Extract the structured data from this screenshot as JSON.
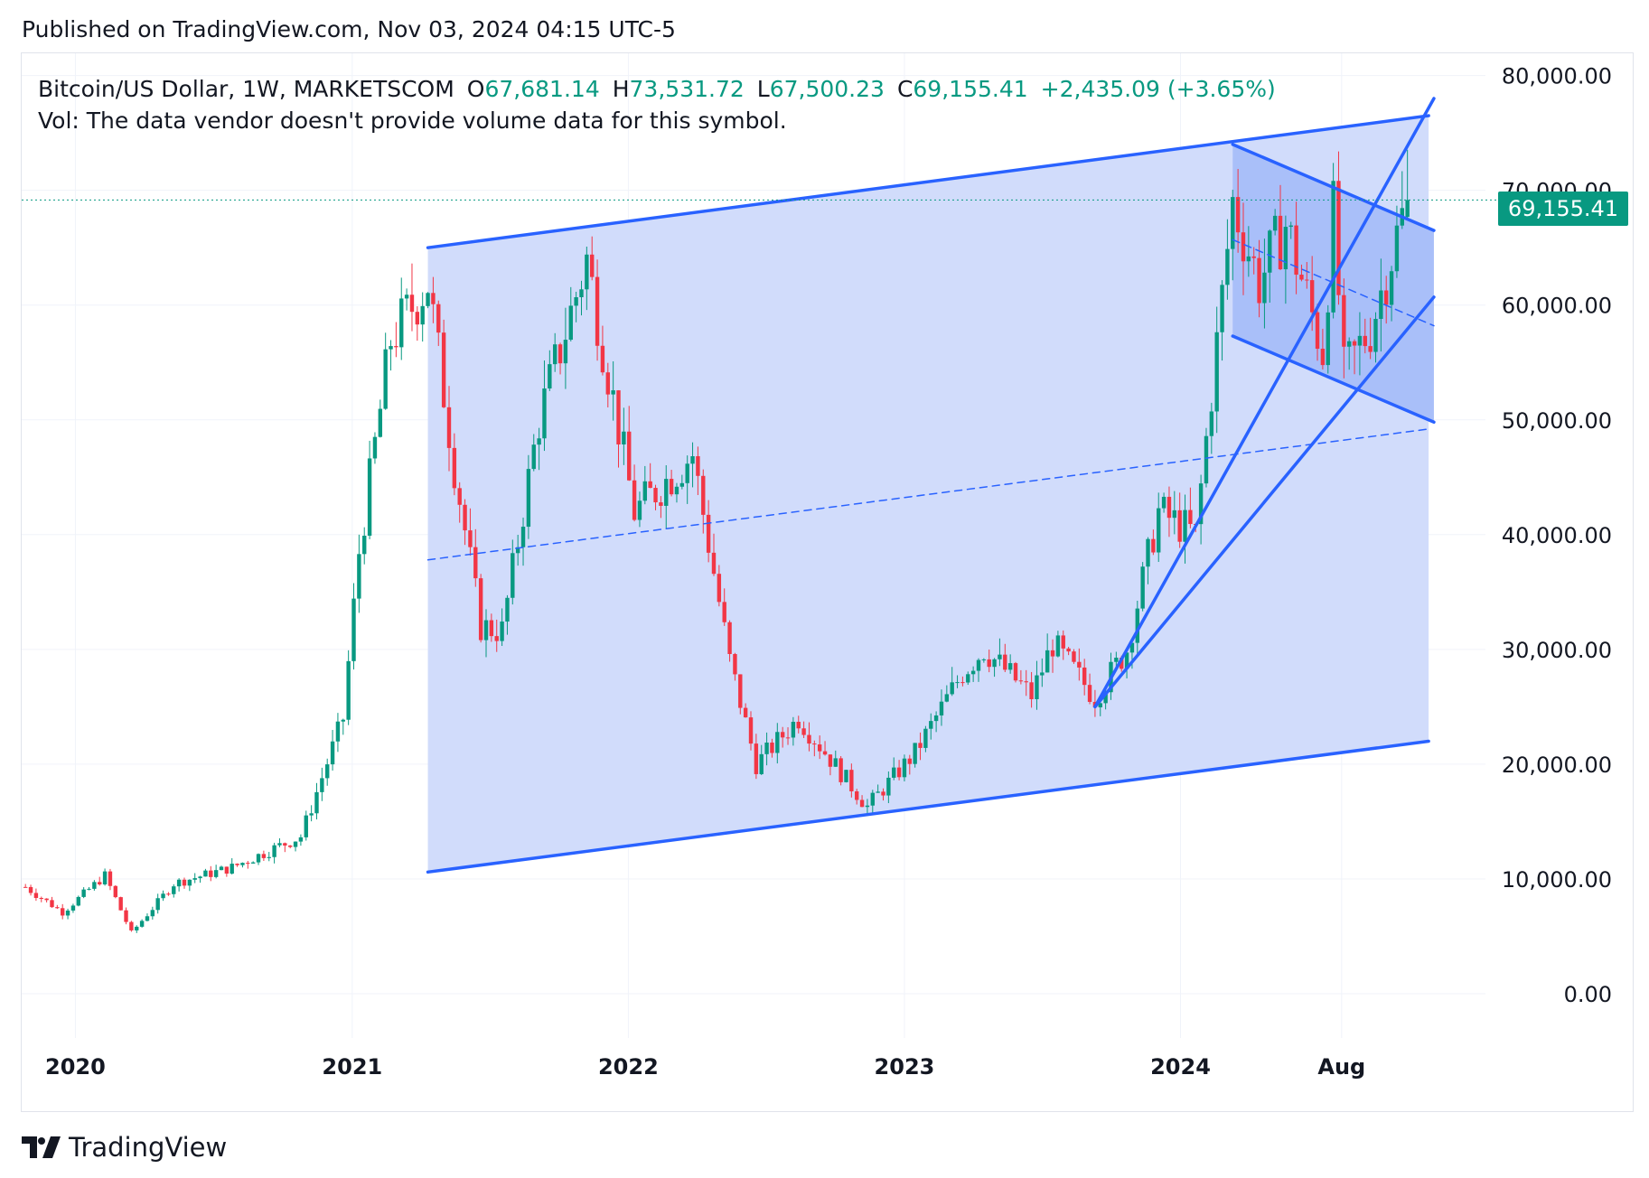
{
  "header": {
    "published": "Published on TradingView.com, Nov 03, 2024 04:15 UTC-5"
  },
  "legend": {
    "symbol": "Bitcoin/US Dollar, 1W, MARKETSCOM",
    "open_label": "O",
    "open": "67,681.14",
    "high_label": "H",
    "high": "73,531.72",
    "low_label": "L",
    "low": "67,500.23",
    "close_label": "C",
    "close": "69,155.41",
    "change": "+2,435.09 (+3.65%)",
    "volume_note": "Vol: The data vendor doesn't provide volume data for this symbol."
  },
  "price_badge": "69,155.41",
  "footer": {
    "brand": "TradingView"
  },
  "colors": {
    "up": "#089981",
    "down": "#f23645",
    "drawing": "#2962ff",
    "channel_fill": "#d1dcfb",
    "badge": "#089981"
  },
  "chart_data": {
    "type": "candlestick",
    "title": "Bitcoin/US Dollar, 1W, MARKETSCOM",
    "xlabel": "",
    "ylabel": "",
    "x_ticks": [
      "2020",
      "2021",
      "2022",
      "2023",
      "2024",
      "Aug"
    ],
    "y_ticks": [
      "0.00",
      "10,000.00",
      "20,000.00",
      "30,000.00",
      "40,000.00",
      "50,000.00",
      "60,000.00",
      "70,000.00",
      "80,000.00"
    ],
    "ylim": [
      0,
      80000
    ],
    "xlim": [
      "2019-10-22",
      "2024-12-01"
    ],
    "grid": true,
    "last_price": 69155.41,
    "series": [
      {
        "date": "2019-10-27",
        "close": 9300
      },
      {
        "date": "2019-12-15",
        "close": 7100
      },
      {
        "date": "2020-02-09",
        "close": 10300
      },
      {
        "date": "2020-03-15",
        "close": 5300
      },
      {
        "date": "2020-05-10",
        "close": 9600
      },
      {
        "date": "2020-07-26",
        "close": 11000
      },
      {
        "date": "2020-10-25",
        "close": 13700
      },
      {
        "date": "2020-12-20",
        "close": 24000
      },
      {
        "date": "2021-01-10",
        "close": 38500
      },
      {
        "date": "2021-02-21",
        "close": 57000
      },
      {
        "date": "2021-04-11",
        "close": 62000
      },
      {
        "date": "2021-05-16",
        "close": 46000
      },
      {
        "date": "2021-06-20",
        "close": 32000
      },
      {
        "date": "2021-07-18",
        "close": 31600
      },
      {
        "date": "2021-09-05",
        "close": 50000
      },
      {
        "date": "2021-11-07",
        "close": 64000
      },
      {
        "date": "2022-01-09",
        "close": 42000
      },
      {
        "date": "2022-03-27",
        "close": 47000
      },
      {
        "date": "2022-05-15",
        "close": 29000
      },
      {
        "date": "2022-06-19",
        "close": 20000
      },
      {
        "date": "2022-08-14",
        "close": 24000
      },
      {
        "date": "2022-11-13",
        "close": 16300
      },
      {
        "date": "2023-01-15",
        "close": 21000
      },
      {
        "date": "2023-03-19",
        "close": 28000
      },
      {
        "date": "2023-04-16",
        "close": 30000
      },
      {
        "date": "2023-06-18",
        "close": 26000
      },
      {
        "date": "2023-07-16",
        "close": 30500
      },
      {
        "date": "2023-09-10",
        "close": 25800
      },
      {
        "date": "2023-10-22",
        "close": 30000
      },
      {
        "date": "2023-12-03",
        "close": 42000
      },
      {
        "date": "2024-01-21",
        "close": 40000
      },
      {
        "date": "2024-03-10",
        "close": 69000
      },
      {
        "date": "2024-04-14",
        "close": 62000
      },
      {
        "date": "2024-05-19",
        "close": 67000
      },
      {
        "date": "2024-07-07",
        "close": 56000
      },
      {
        "date": "2024-07-21",
        "close": 68000
      },
      {
        "date": "2024-08-04",
        "close": 54000
      },
      {
        "date": "2024-09-08",
        "close": 58000
      },
      {
        "date": "2024-10-13",
        "close": 66000
      },
      {
        "date": "2024-10-27",
        "close": 69155.41
      }
    ],
    "drawings": {
      "big_channel": {
        "top": [
          [
            "2021-04-11",
            65000
          ],
          [
            "2024-11-24",
            76500
          ]
        ],
        "bottom": [
          [
            "2021-04-11",
            10600
          ],
          [
            "2024-11-24",
            22000
          ]
        ],
        "mid": [
          [
            "2021-04-11",
            37800
          ],
          [
            "2024-11-24",
            49200
          ]
        ]
      },
      "falling_channel": {
        "top": [
          [
            "2024-03-10",
            74000
          ],
          [
            "2024-12-01",
            66500
          ]
        ],
        "bottom": [
          [
            "2024-03-10",
            57300
          ],
          [
            "2024-12-01",
            49800
          ]
        ],
        "mid": [
          [
            "2024-03-10",
            65700
          ],
          [
            "2024-12-01",
            58200
          ]
        ]
      },
      "trend_lines": [
        [
          [
            "2023-09-10",
            25000
          ],
          [
            "2024-12-01",
            78000
          ]
        ],
        [
          [
            "2023-09-10",
            25000
          ],
          [
            "2024-12-01",
            60700
          ]
        ]
      ]
    }
  }
}
